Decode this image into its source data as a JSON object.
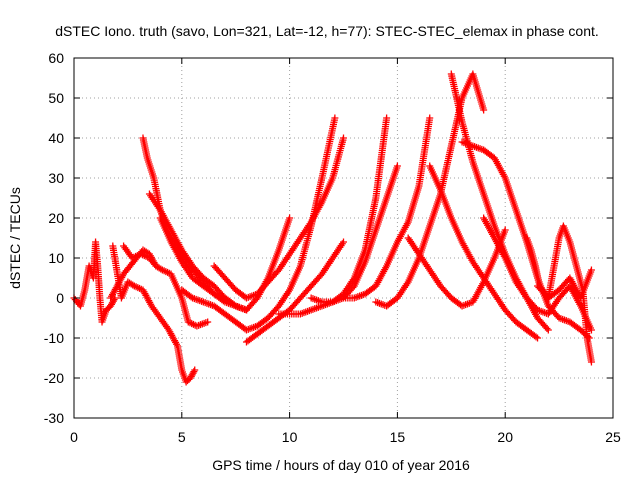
{
  "chart_data": {
    "type": "scatter",
    "title": "dSTEC Iono. truth (savo, Lon=321, Lat=-12, h=77): STEC-STEC_elemax in phase cont.",
    "xlabel": "GPS time / hours of day 010 of year 2016",
    "ylabel": "dSTEC  / TECUs",
    "xlim": [
      0,
      25
    ],
    "ylim": [
      -30,
      60
    ],
    "xticks": [
      0,
      5,
      10,
      15,
      20,
      25
    ],
    "yticks": [
      -30,
      -20,
      -10,
      0,
      10,
      20,
      30,
      40,
      50,
      60
    ],
    "grid": true,
    "marker": "+",
    "color": "#ff0000",
    "series": [
      {
        "x": [
          0.0,
          0.3,
          0.5,
          0.7,
          0.9,
          1.0,
          1.1,
          1.2,
          1.3,
          1.5,
          1.7,
          1.9
        ],
        "y": [
          0,
          -2,
          2,
          8,
          5,
          14,
          8,
          0,
          -6,
          -3,
          -2,
          0
        ]
      },
      {
        "x": [
          1.7,
          2.0,
          2.3,
          2.6,
          2.9,
          3.2,
          3.5,
          3.8
        ],
        "y": [
          0,
          3,
          6,
          8,
          10,
          12,
          11,
          8
        ]
      },
      {
        "x": [
          1.8,
          2.2,
          2.5,
          2.8,
          3.2,
          3.6,
          4.0,
          4.4,
          4.8,
          5.0,
          5.2,
          5.4,
          5.6
        ],
        "y": [
          13,
          0,
          4,
          3,
          2,
          -2,
          -5,
          -8,
          -12,
          -18,
          -21,
          -20,
          -18
        ]
      },
      {
        "x": [
          2.3,
          2.7,
          3.1,
          3.5,
          3.8,
          4.1,
          4.5,
          5.0,
          5.3,
          5.7,
          6.2
        ],
        "y": [
          13,
          10,
          11,
          10,
          8,
          7,
          6,
          0,
          -6,
          -7,
          -6
        ]
      },
      {
        "x": [
          3.2,
          3.4,
          3.7,
          4.0,
          4.3,
          4.6,
          5.0,
          5.5,
          6.0,
          6.5,
          7.0,
          7.5,
          8.0
        ],
        "y": [
          40,
          35,
          30,
          22,
          17,
          14,
          11,
          7,
          4,
          1,
          -1,
          -2,
          -3
        ]
      },
      {
        "x": [
          3.5,
          4.0,
          4.5,
          5.0,
          5.5,
          6.0,
          6.5,
          7.0,
          7.5,
          8.0
        ],
        "y": [
          26,
          22,
          17,
          12,
          8,
          5,
          3,
          0,
          -2,
          -3
        ]
      },
      {
        "x": [
          4.0,
          4.5,
          5.0,
          5.5,
          6.0,
          6.5,
          7.0,
          7.5,
          8.0,
          8.5,
          9.0,
          9.5,
          10.0
        ],
        "y": [
          20,
          14,
          9,
          5,
          3,
          1,
          0,
          -2,
          -3,
          0,
          5,
          12,
          20
        ]
      },
      {
        "x": [
          5.0,
          5.5,
          6.0,
          6.5,
          7.0,
          7.5,
          8.0,
          8.5,
          9.0,
          9.5,
          10.0,
          10.5,
          11.0,
          11.5,
          12.1
        ],
        "y": [
          2,
          0,
          -1,
          -2,
          -4,
          -6,
          -8,
          -7,
          -5,
          -2,
          2,
          8,
          18,
          30,
          45
        ]
      },
      {
        "x": [
          6.5,
          7.0,
          7.5,
          8.0,
          8.5,
          9.0,
          9.5,
          10.0,
          10.5,
          11.0,
          11.5,
          12.0,
          12.5
        ],
        "y": [
          8,
          5,
          2,
          0,
          1,
          4,
          7,
          11,
          15,
          19,
          24,
          30,
          40
        ]
      },
      {
        "x": [
          8.0,
          8.5,
          9.0,
          9.5,
          10.0,
          10.5,
          11.0,
          11.5,
          12.0,
          12.5
        ],
        "y": [
          -11,
          -9,
          -7,
          -5,
          -3,
          0,
          3,
          6,
          10,
          14
        ]
      },
      {
        "x": [
          9.5,
          10.0,
          10.5,
          11.0,
          11.5,
          12.0,
          12.5,
          13.0,
          13.5,
          14.0,
          14.5
        ],
        "y": [
          -4,
          -4,
          -4,
          -3,
          -2,
          -1,
          1,
          5,
          12,
          25,
          45
        ]
      },
      {
        "x": [
          11.0,
          11.5,
          12.0,
          12.5,
          13.0,
          13.5,
          14.0,
          14.5,
          15.0
        ],
        "y": [
          0,
          -1,
          -1,
          0,
          3,
          9,
          17,
          25,
          33
        ]
      },
      {
        "x": [
          12.5,
          13.0,
          13.5,
          14.0,
          14.5,
          15.0,
          15.5,
          16.0,
          16.5
        ],
        "y": [
          0,
          0,
          1,
          3,
          8,
          14,
          19,
          28,
          45
        ]
      },
      {
        "x": [
          14.0,
          14.5,
          15.0,
          15.5,
          16.0,
          16.5,
          17.0,
          17.5,
          18.0,
          18.5,
          19.0
        ],
        "y": [
          -1,
          -2,
          0,
          4,
          10,
          18,
          26,
          38,
          50,
          56,
          47
        ]
      },
      {
        "x": [
          15.5,
          16.0,
          16.5,
          17.0,
          17.5,
          18.0,
          18.5,
          19.0,
          19.5,
          20.0
        ],
        "y": [
          15,
          11,
          7,
          3,
          0,
          -2,
          -1,
          4,
          10,
          17
        ]
      },
      {
        "x": [
          16.5,
          17.0,
          17.5,
          18.0,
          18.5,
          19.0,
          19.5,
          20.0,
          20.5,
          21.0,
          21.5
        ],
        "y": [
          33,
          27,
          20,
          14,
          9,
          5,
          1,
          -3,
          -6,
          -8,
          -10
        ]
      },
      {
        "x": [
          17.5,
          18.0,
          18.5,
          19.0,
          19.5,
          20.0,
          20.5,
          21.0,
          21.5,
          22.0
        ],
        "y": [
          56,
          44,
          34,
          26,
          18,
          11,
          5,
          0,
          -5,
          -8
        ]
      },
      {
        "x": [
          18.0,
          18.5,
          19.0,
          19.5,
          20.0,
          20.5,
          21.0,
          21.5,
          22.0,
          22.5,
          23.0,
          23.5,
          23.9
        ],
        "y": [
          39,
          38,
          37,
          35,
          30,
          22,
          14,
          5,
          -2,
          -5,
          -6,
          -8,
          -10
        ]
      },
      {
        "x": [
          19.0,
          19.5,
          20.0,
          20.5,
          21.0,
          21.5,
          22.0,
          22.5,
          23.0,
          23.5,
          24.0
        ],
        "y": [
          20,
          15,
          10,
          4,
          0,
          -3,
          -4,
          0,
          3,
          -2,
          -8
        ]
      },
      {
        "x": [
          21.0,
          21.2,
          21.4,
          21.6,
          22.0,
          22.5,
          22.7,
          23.0,
          23.3,
          23.6,
          23.8,
          24.0
        ],
        "y": [
          15,
          12,
          8,
          3,
          0,
          15,
          18,
          14,
          8,
          2,
          -10,
          -16
        ]
      },
      {
        "x": [
          21.5,
          22.0,
          22.5,
          23.0,
          23.5,
          24.0
        ],
        "y": [
          3,
          0,
          2,
          5,
          0,
          7
        ]
      }
    ]
  }
}
